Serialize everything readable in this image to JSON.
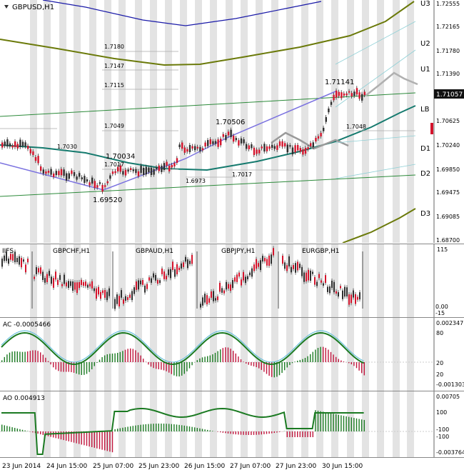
{
  "window": {
    "title": "GBPUSD,H1",
    "menu_icon": "triangle-down-icon"
  },
  "price_scale": [
    "1.72555",
    "1.72165",
    "1.71780",
    "1.71390",
    "1.71057",
    "1.70625",
    "1.70240",
    "1.69850",
    "1.69475",
    "1.69085",
    "1.68700"
  ],
  "current_price": "1.71057",
  "levels_right": {
    "u3": "U3",
    "u2": "U2",
    "u1": "U1",
    "lb": "LB",
    "d1": "D1",
    "d2": "D2",
    "d3": "D3"
  },
  "level_notes": {
    "n1": "1.7180",
    "n2": "1.7147",
    "n3": "1.7115",
    "n4": "1.7049",
    "n5": "1.7017",
    "n6": "1.7030",
    "n7": "1.6973",
    "n8": "1.7017",
    "n9": "1.7048"
  },
  "pivots": {
    "p1": "1.69520",
    "p2": "1.70034",
    "p3": "1.70506",
    "p4": "1.71141"
  },
  "ifs_panel": {
    "label": "IIFS",
    "symbols": [
      "GBPCHF,H1",
      "GBPAUD,H1",
      "GBPJPY,H1",
      "EURGBP,H1"
    ],
    "scale_top": "115",
    "scale_bottom": "0.00",
    "scale_minus": "-15"
  },
  "ac_panel": {
    "label": "AC -0.0005466",
    "scale": [
      "0.002347",
      "80",
      "20",
      "20",
      "-0.001303"
    ]
  },
  "ao_panel": {
    "label": "AO 0.004913",
    "scale": [
      "0.00705",
      "100",
      "-100",
      "-100",
      "-0.003764"
    ]
  },
  "time_axis": [
    "23 Jun 2014",
    "24 Jun 15:00",
    "25 Jun 07:00",
    "25 Jun 23:00",
    "26 Jun 15:00",
    "27 Jun 07:00",
    "27 Jun 23:00",
    "30 Jun 15:00"
  ],
  "colors": {
    "candle_up": "#2f2f2f",
    "candle_down": "#d4142c",
    "teal": "#157a6e",
    "olive": "#6b7a0a",
    "navy": "#1a1aa8",
    "channel_purple": "#7b72e0",
    "trend_green": "#2c8a3a",
    "ao_green": "#1b7a22",
    "ao_red": "#c0143c"
  }
}
